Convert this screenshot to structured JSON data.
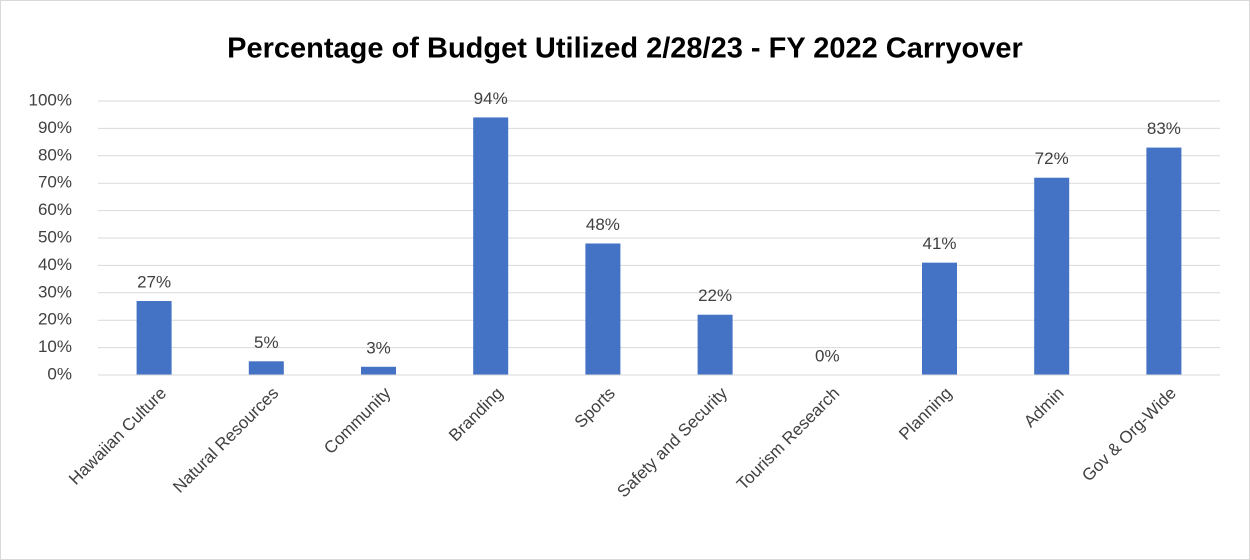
{
  "chart_data": {
    "type": "bar",
    "title": "Percentage of Budget Utilized 2/28/23 - FY 2022 Carryover",
    "categories": [
      "Hawaiian Culture",
      "Natural Resources",
      "Community",
      "Branding",
      "Sports",
      "Safety and Security",
      "Tourism Research",
      "Planning",
      "Admin",
      "Gov & Org-Wide"
    ],
    "values": [
      27,
      5,
      3,
      94,
      48,
      22,
      0,
      41,
      72,
      83
    ],
    "value_labels": [
      "27%",
      "5%",
      "3%",
      "94%",
      "48%",
      "22%",
      "0%",
      "41%",
      "72%",
      "83%"
    ],
    "color": "#4472c4",
    "ylim": [
      0,
      100
    ],
    "yticks": [
      {
        "value": 0,
        "label": "0%"
      },
      {
        "value": 10,
        "label": "10%"
      },
      {
        "value": 20,
        "label": "20%"
      },
      {
        "value": 30,
        "label": "30%"
      },
      {
        "value": 40,
        "label": "40%"
      },
      {
        "value": 50,
        "label": "50%"
      },
      {
        "value": 60,
        "label": "60%"
      },
      {
        "value": 70,
        "label": "70%"
      },
      {
        "value": 80,
        "label": "80%"
      },
      {
        "value": 90,
        "label": "90%"
      },
      {
        "value": 100,
        "label": "100%"
      }
    ],
    "grid": true
  }
}
